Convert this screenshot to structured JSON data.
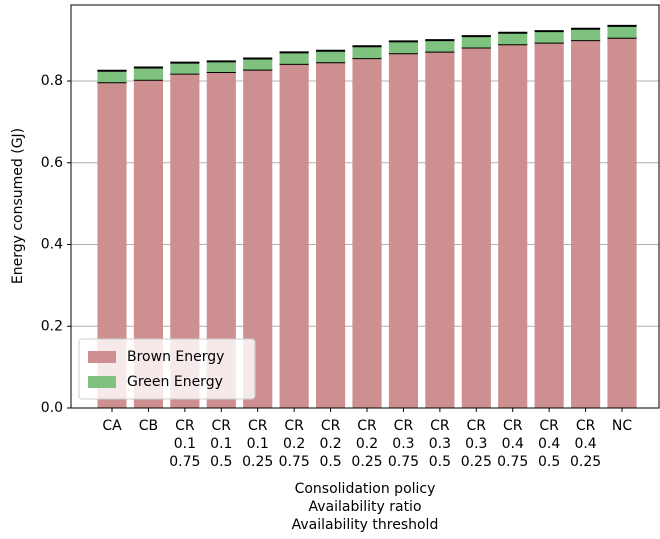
{
  "chart_data": {
    "type": "stacked_bar",
    "ylabel": "Energy consumed (GJ)",
    "xlabel": [
      "Consolidation policy",
      "Availability ratio",
      "Availability threshold"
    ],
    "categories": [
      [
        "CA"
      ],
      [
        "CB"
      ],
      [
        "CR",
        "0.1",
        "0.75"
      ],
      [
        "CR",
        "0.1",
        "0.5"
      ],
      [
        "CR",
        "0.1",
        "0.25"
      ],
      [
        "CR",
        "0.2",
        "0.75"
      ],
      [
        "CR",
        "0.2",
        "0.5"
      ],
      [
        "CR",
        "0.2",
        "0.25"
      ],
      [
        "CR",
        "0.3",
        "0.75"
      ],
      [
        "CR",
        "0.3",
        "0.5"
      ],
      [
        "CR",
        "0.3",
        "0.25"
      ],
      [
        "CR",
        "0.4",
        "0.75"
      ],
      [
        "CR",
        "0.4",
        "0.5"
      ],
      [
        "CR",
        "0.4",
        "0.25"
      ],
      [
        "NC"
      ]
    ],
    "series": [
      {
        "name": "Brown Energy",
        "color": "#cd8f8f",
        "values": [
          0.797,
          0.803,
          0.818,
          0.822,
          0.828,
          0.842,
          0.846,
          0.856,
          0.868,
          0.872,
          0.882,
          0.89,
          0.894,
          0.9,
          0.906
        ]
      },
      {
        "name": "Green Energy",
        "color": "#7fc17f",
        "values": [
          0.028,
          0.03,
          0.027,
          0.026,
          0.027,
          0.028,
          0.028,
          0.029,
          0.029,
          0.028,
          0.028,
          0.028,
          0.028,
          0.028,
          0.029
        ]
      }
    ],
    "ylim": [
      0,
      0.986
    ],
    "yticks": [
      {
        "value": 0,
        "label": "0.0"
      },
      0.2,
      0.4,
      0.6,
      0.8
    ],
    "grid": true,
    "legend": "lower left"
  }
}
